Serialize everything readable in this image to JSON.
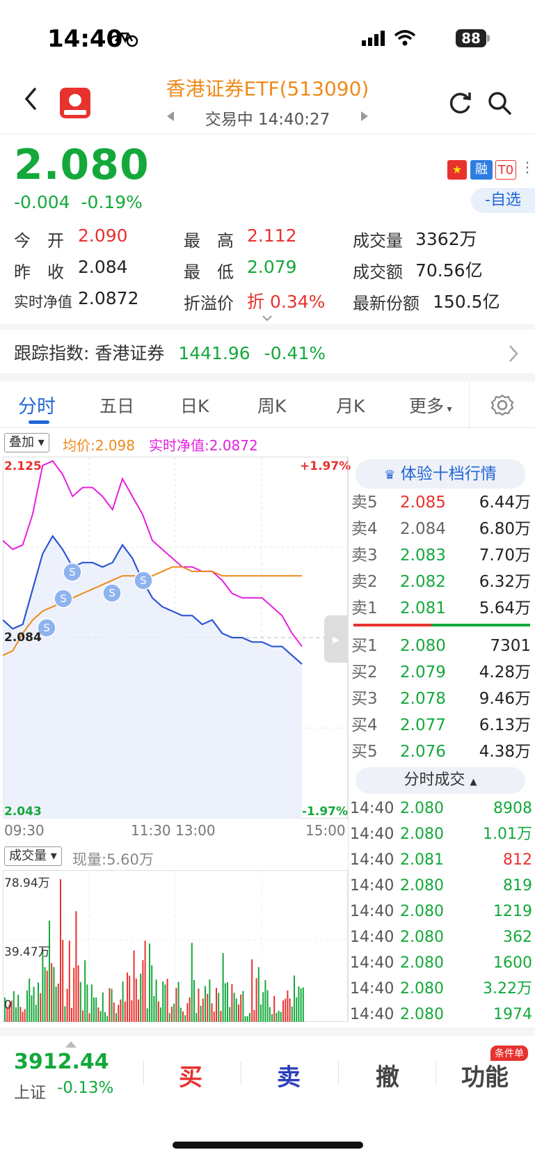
{
  "status_bar": {
    "time": "14:40",
    "battery": "88"
  },
  "header": {
    "title": "香港证券ETF(513090)",
    "trade_status": "交易中 14:40:27"
  },
  "quote": {
    "price": "2.080",
    "change": "-0.004",
    "change_pct": "-0.19%",
    "watch_label": "-自选",
    "flags": {
      "margin": "融",
      "t0": "T0"
    },
    "fields": {
      "open_label": "今　开",
      "open": "2.090",
      "high_label": "最　高",
      "high": "2.112",
      "volume_label": "成交量",
      "volume": "3362万",
      "prev_close_label": "昨　收",
      "prev_close": "2.084",
      "low_label": "最　低",
      "low": "2.079",
      "amount_label": "成交额",
      "amount": "70.56亿",
      "nav_label": "实时净值",
      "nav": "2.0872",
      "premium_label": "折溢价",
      "premium_prefix": "折",
      "premium": "0.34%",
      "shares_label": "最新份额",
      "shares": "150.5亿"
    }
  },
  "index_tracking": {
    "label": "跟踪指数: 香港证券",
    "value": "1441.96",
    "change_pct": "-0.41%"
  },
  "tabs": [
    "分时",
    "五日",
    "日K",
    "周K",
    "月K",
    "更多"
  ],
  "overlay": {
    "button": "叠加",
    "avg": "均价:2.098",
    "nav": "实时净值:2.0872"
  },
  "chart_data": {
    "type": "line",
    "y_high": "2.125",
    "y_mid": "2.084",
    "y_low": "2.043",
    "pct_high": "+1.97%",
    "pct_low": "-1.97%",
    "x_ticks": [
      "09:30",
      "11:30 13:00",
      "15:00"
    ],
    "series": [
      {
        "name": "均价",
        "values": [
          2.08,
          2.081,
          2.085,
          2.088,
          2.09,
          2.091,
          2.092,
          2.093,
          2.094,
          2.095,
          2.096,
          2.097,
          2.098,
          2.098,
          2.098,
          2.098,
          2.099,
          2.1,
          2.1,
          2.099,
          2.099,
          2.099,
          2.098,
          2.098,
          2.098,
          2.098,
          2.098,
          2.098,
          2.098,
          2.098,
          2.098
        ]
      },
      {
        "name": "实时净值",
        "values": [
          2.106,
          2.104,
          2.105,
          2.112,
          2.123,
          2.124,
          2.121,
          2.116,
          2.118,
          2.118,
          2.116,
          2.113,
          2.12,
          2.116,
          2.112,
          2.106,
          2.104,
          2.102,
          2.1,
          2.1,
          2.099,
          2.099,
          2.097,
          2.094,
          2.093,
          2.093,
          2.093,
          2.091,
          2.089,
          2.085,
          2.082
        ]
      },
      {
        "name": "价格",
        "values": [
          2.088,
          2.086,
          2.087,
          2.095,
          2.103,
          2.107,
          2.104,
          2.1,
          2.101,
          2.101,
          2.1,
          2.101,
          2.105,
          2.102,
          2.097,
          2.093,
          2.091,
          2.09,
          2.089,
          2.089,
          2.087,
          2.088,
          2.085,
          2.084,
          2.084,
          2.083,
          2.083,
          2.082,
          2.082,
          2.08,
          2.078
        ]
      }
    ]
  },
  "volume_panel": {
    "button": "成交量",
    "current": "现量:5.60万",
    "y_max": "78.94万",
    "y_mid": "39.47万",
    "y_min": "0"
  },
  "order_book": {
    "upgrade_label": "体验十档行情",
    "asks": [
      {
        "label": "卖5",
        "price": "2.085",
        "vol": "6.44万"
      },
      {
        "label": "卖4",
        "price": "2.084",
        "vol": "6.80万"
      },
      {
        "label": "卖3",
        "price": "2.083",
        "vol": "7.70万"
      },
      {
        "label": "卖2",
        "price": "2.082",
        "vol": "6.32万"
      },
      {
        "label": "卖1",
        "price": "2.081",
        "vol": "5.64万"
      }
    ],
    "bids": [
      {
        "label": "买1",
        "price": "2.080",
        "vol": "7301"
      },
      {
        "label": "买2",
        "price": "2.079",
        "vol": "4.28万"
      },
      {
        "label": "买3",
        "price": "2.078",
        "vol": "9.46万"
      },
      {
        "label": "买4",
        "price": "2.077",
        "vol": "6.13万"
      },
      {
        "label": "买5",
        "price": "2.076",
        "vol": "4.38万"
      }
    ],
    "trades_label": "分时成交",
    "trades": [
      {
        "time": "14:40",
        "price": "2.080",
        "vol": "8908"
      },
      {
        "time": "14:40",
        "price": "2.080",
        "vol": "1.01万"
      },
      {
        "time": "14:40",
        "price": "2.081",
        "vol": "812"
      },
      {
        "time": "14:40",
        "price": "2.080",
        "vol": "819"
      },
      {
        "time": "14:40",
        "price": "2.080",
        "vol": "1219"
      },
      {
        "time": "14:40",
        "price": "2.080",
        "vol": "362"
      },
      {
        "time": "14:40",
        "price": "2.080",
        "vol": "1600"
      },
      {
        "time": "14:40",
        "price": "2.080",
        "vol": "3.22万"
      },
      {
        "time": "14:40",
        "price": "2.080",
        "vol": "1974"
      }
    ]
  },
  "bottom_bar": {
    "index_value": "3912.44",
    "index_name": "上证",
    "index_change": "-0.13%",
    "buy": "买",
    "sell": "卖",
    "cancel": "撤",
    "function": "功能",
    "badge": "条件单"
  }
}
